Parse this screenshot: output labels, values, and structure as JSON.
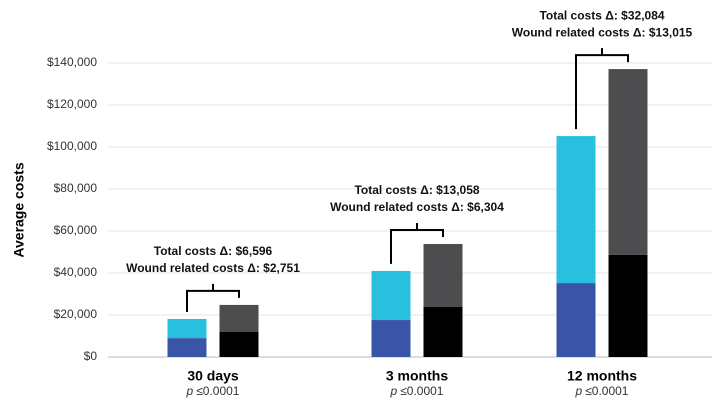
{
  "chart_data": {
    "type": "stacked_bar",
    "y_label": "Average costs",
    "categories": [
      "30 days",
      "3 months",
      "12 months"
    ],
    "category_notes": [
      {
        "symbol": "p",
        "text": "≤0.0001"
      },
      {
        "symbol": "p",
        "text": "≤0.0001"
      },
      {
        "symbol": "p",
        "text": "≤0.0001"
      }
    ],
    "series": [
      {
        "stack": 0,
        "color": "#3a55a8",
        "values": [
          9000,
          17600,
          35200
        ]
      },
      {
        "stack": 0,
        "color": "#29c0e0",
        "values": [
          9100,
          23400,
          70000
        ]
      },
      {
        "stack": 1,
        "color": "#000000",
        "values": [
          11900,
          23800,
          48600
        ]
      },
      {
        "stack": 1,
        "color": "#4d4d4f",
        "values": [
          12900,
          30000,
          88500
        ]
      }
    ],
    "annotations": [
      [
        "Total costs Δ: $6,596",
        "Wound related costs Δ: $2,751"
      ],
      [
        "Total costs Δ: $13,058",
        "Wound related costs Δ: $6,304"
      ],
      [
        "Total costs Δ: $32,084",
        "Wound related costs Δ: $13,015"
      ]
    ],
    "ylim": [
      0,
      140000
    ],
    "yticks": [
      {
        "value": 0,
        "label": "$0"
      },
      {
        "value": 20000,
        "label": "$20,000"
      },
      {
        "value": 40000,
        "label": "$40,000"
      },
      {
        "value": 60000,
        "label": "$60,000"
      },
      {
        "value": 80000,
        "label": "$80,000"
      },
      {
        "value": 100000,
        "label": "$100,000"
      },
      {
        "value": 120000,
        "label": "$120,000"
      },
      {
        "value": 140000,
        "label": "$140,000"
      }
    ]
  }
}
